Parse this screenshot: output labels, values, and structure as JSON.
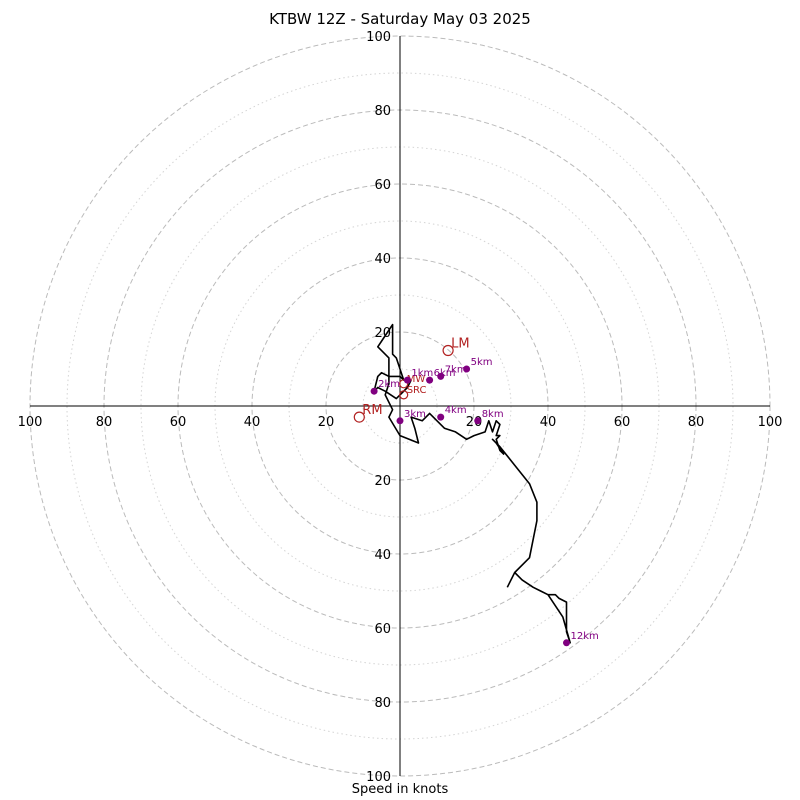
{
  "title": "KTBW 12Z - Saturday May 03 2025",
  "xlabel": "Speed in knots",
  "colors": {
    "trace": "#000000",
    "height_marker": "#800080",
    "motion_marker": "#b22222",
    "ring_major": "#bbbbbb",
    "ring_minor": "#d4d4d4"
  },
  "chart_data": {
    "type": "hodograph",
    "range_knots": 100,
    "major_rings": [
      20,
      40,
      60,
      80,
      100
    ],
    "minor_rings": [
      10,
      30,
      50,
      70,
      90
    ],
    "tick_labels": [
      "100",
      "80",
      "60",
      "40",
      "20",
      "20",
      "40",
      "60",
      "80",
      "100"
    ],
    "grid": true,
    "trace_uv": [
      [
        3,
        7
      ],
      [
        2,
        5
      ],
      [
        0,
        3
      ],
      [
        -1,
        2
      ],
      [
        -4,
        4
      ],
      [
        -6,
        5
      ],
      [
        -7,
        4
      ],
      [
        -6,
        8
      ],
      [
        -5,
        9
      ],
      [
        -3,
        8
      ],
      [
        0,
        8
      ],
      [
        1,
        7
      ],
      [
        -1,
        13
      ],
      [
        -2,
        14
      ],
      [
        -2,
        22
      ],
      [
        -6,
        16
      ],
      [
        -3,
        13
      ],
      [
        -3,
        6
      ],
      [
        -4,
        3
      ],
      [
        -2,
        -1
      ],
      [
        -3,
        -3
      ],
      [
        0,
        -8
      ],
      [
        5,
        -10
      ],
      [
        4,
        -6
      ],
      [
        3,
        -3
      ],
      [
        6,
        -4
      ],
      [
        8,
        -2
      ],
      [
        10,
        -4
      ],
      [
        12,
        -6
      ],
      [
        15,
        -7
      ],
      [
        18,
        -9
      ],
      [
        20,
        -8
      ],
      [
        23,
        -7
      ],
      [
        24,
        -4
      ],
      [
        25,
        -7
      ],
      [
        26,
        -4
      ],
      [
        27,
        -5
      ],
      [
        26,
        -8
      ],
      [
        27,
        -8
      ],
      [
        26,
        -9
      ],
      [
        27,
        -12
      ],
      [
        28,
        -13
      ],
      [
        26,
        -10
      ],
      [
        25,
        -9
      ],
      [
        27,
        -11
      ],
      [
        31,
        -16
      ],
      [
        35,
        -21
      ],
      [
        37,
        -26
      ],
      [
        37,
        -31
      ],
      [
        35,
        -41
      ],
      [
        31,
        -45
      ],
      [
        33,
        -47
      ],
      [
        36,
        -49
      ],
      [
        38,
        -50
      ],
      [
        40,
        -51
      ],
      [
        42,
        -51
      ],
      [
        43,
        -52
      ],
      [
        45,
        -53
      ],
      [
        45,
        -61
      ],
      [
        46,
        -64
      ],
      [
        44,
        -57
      ],
      [
        40,
        -51
      ],
      [
        36,
        -49
      ],
      [
        33,
        -47
      ],
      [
        31,
        -45
      ],
      [
        29,
        -49
      ]
    ],
    "height_points": [
      {
        "label": "1km",
        "u": 2,
        "v": 7
      },
      {
        "label": "2km",
        "u": -7,
        "v": 4
      },
      {
        "label": "3km",
        "u": 0,
        "v": -4
      },
      {
        "label": "4km",
        "u": 11,
        "v": -3
      },
      {
        "label": "5km",
        "u": 18,
        "v": 10
      },
      {
        "label": "6km",
        "u": 8,
        "v": 7
      },
      {
        "label": "7km",
        "u": 11,
        "v": 8
      },
      {
        "label": "8km",
        "u": 21,
        "v": -4
      },
      {
        "label": "12km",
        "u": 45,
        "v": -64
      }
    ],
    "storm_motion": [
      {
        "label": "LM",
        "u": 13,
        "v": 15
      },
      {
        "label": "RM",
        "u": -11,
        "v": -3
      },
      {
        "label": "MW",
        "u": 1,
        "v": 6
      },
      {
        "label": "SRC",
        "u": 1,
        "v": 3
      }
    ]
  }
}
